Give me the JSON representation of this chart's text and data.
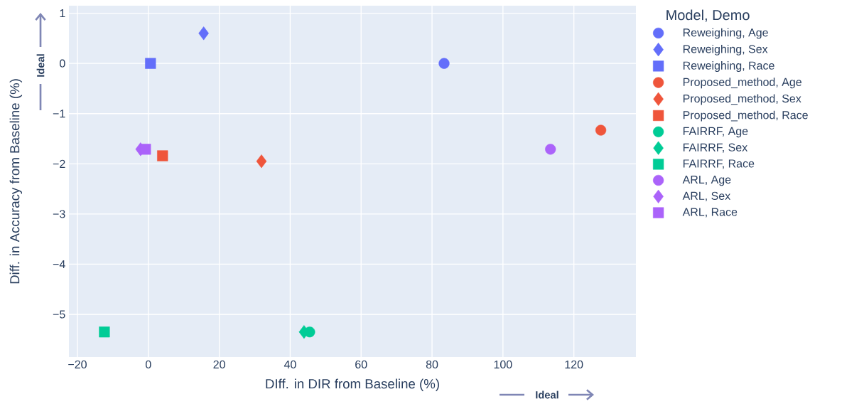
{
  "chart_data": {
    "type": "scatter",
    "xlabel": "DIff. in DIR from Baseline (%)",
    "ylabel": "Diff. in Accuracy from Baseline (%)",
    "legend_title": "Model, Demo",
    "legend": "right",
    "grid": true,
    "xlim": [
      -22.4,
      137.5
    ],
    "ylim": [
      -5.85,
      1.15
    ],
    "xticks": [
      {
        "value": -20,
        "label": "−20"
      },
      0,
      20,
      40,
      60,
      80,
      100,
      120
    ],
    "yticks": [
      1,
      0,
      {
        "value": -1,
        "label": "−1"
      },
      {
        "value": -2,
        "label": "−2"
      },
      {
        "value": -3,
        "label": "−3"
      },
      {
        "value": -4,
        "label": "−4"
      },
      {
        "value": -5,
        "label": "−5"
      }
    ],
    "annotations": [
      "Ideal",
      "Ideal"
    ],
    "series": [
      {
        "name": "Reweighing, Age",
        "color": "#636efa",
        "marker": "circle",
        "x": [
          83.4
        ],
        "values": [
          0.0
        ]
      },
      {
        "name": "Reweighing, Sex",
        "color": "#636efa",
        "marker": "diamond",
        "x": [
          15.6
        ],
        "values": [
          0.6
        ]
      },
      {
        "name": "Reweighing, Race",
        "color": "#636efa",
        "marker": "square",
        "x": [
          0.6
        ],
        "values": [
          0.0
        ]
      },
      {
        "name": "Proposed_method, Age",
        "color": "#ef553b",
        "marker": "circle",
        "x": [
          127.6
        ],
        "values": [
          -1.33
        ]
      },
      {
        "name": "Proposed_method, Sex",
        "color": "#ef553b",
        "marker": "diamond",
        "x": [
          31.9
        ],
        "values": [
          -1.95
        ]
      },
      {
        "name": "Proposed_method, Race",
        "color": "#ef553b",
        "marker": "square",
        "x": [
          4.0
        ],
        "values": [
          -1.84
        ]
      },
      {
        "name": "FAIRRF, Age",
        "color": "#00cc96",
        "marker": "circle",
        "x": [
          45.5
        ],
        "values": [
          -5.35
        ]
      },
      {
        "name": "FAIRRF, Sex",
        "color": "#00cc96",
        "marker": "diamond",
        "x": [
          43.9
        ],
        "values": [
          -5.35
        ]
      },
      {
        "name": "FAIRRF, Race",
        "color": "#00cc96",
        "marker": "square",
        "x": [
          -12.4
        ],
        "values": [
          -5.35
        ]
      },
      {
        "name": "ARL, Age",
        "color": "#ab63fa",
        "marker": "circle",
        "x": [
          113.4
        ],
        "values": [
          -1.71
        ]
      },
      {
        "name": "ARL, Sex",
        "color": "#ab63fa",
        "marker": "diamond",
        "x": [
          -2.2
        ],
        "values": [
          -1.71
        ]
      },
      {
        "name": "ARL, Race",
        "color": "#ab63fa",
        "marker": "square",
        "x": [
          -0.8
        ],
        "values": [
          -1.71
        ]
      }
    ]
  }
}
